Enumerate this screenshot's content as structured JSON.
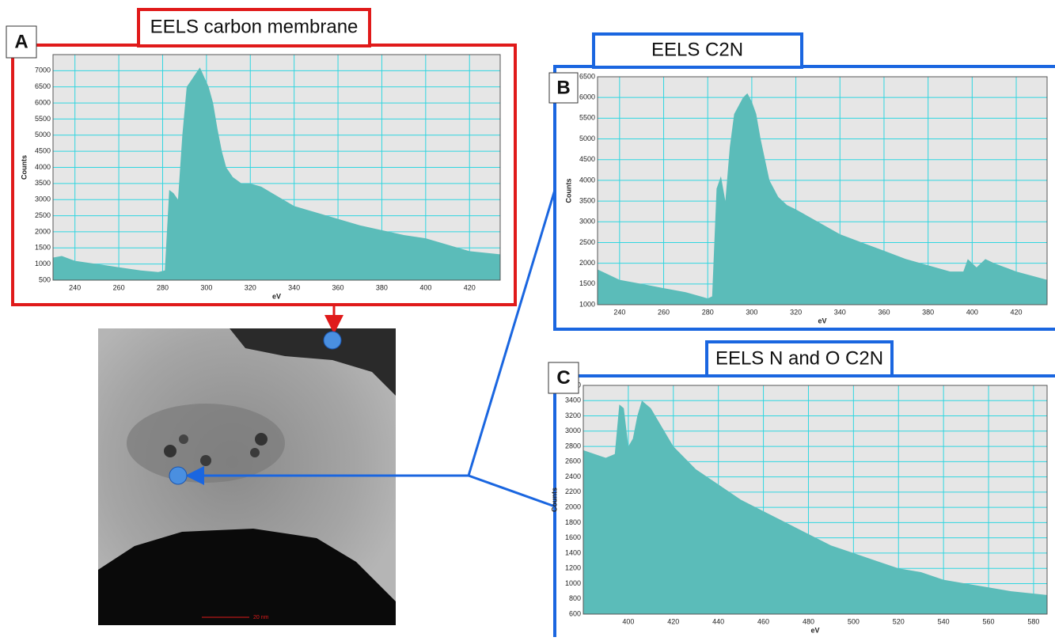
{
  "chart_data": [
    {
      "type": "area",
      "label": "A",
      "title": "EELS carbon membrane",
      "xlabel": "eV",
      "ylabel": "Counts",
      "color": "#5bbcb9",
      "grid": true,
      "xlim": [
        230,
        434
      ],
      "ylim": [
        500,
        7500
      ],
      "xticks": [
        240,
        260,
        280,
        300,
        320,
        340,
        360,
        380,
        400,
        420
      ],
      "yticks": [
        500,
        1000,
        1500,
        2000,
        2500,
        3000,
        3500,
        4000,
        4500,
        5000,
        5500,
        6000,
        6500,
        7000
      ],
      "x": [
        230,
        234,
        240,
        250,
        260,
        270,
        278,
        281,
        283,
        285,
        287,
        289,
        291,
        293,
        295,
        297,
        299,
        301,
        303,
        305,
        307,
        309,
        312,
        316,
        320,
        325,
        330,
        335,
        340,
        350,
        360,
        370,
        380,
        390,
        400,
        410,
        420,
        434
      ],
      "values": [
        1200,
        1250,
        1100,
        1000,
        900,
        800,
        750,
        800,
        3300,
        3200,
        3000,
        5000,
        6500,
        6700,
        6900,
        7100,
        6800,
        6500,
        6000,
        5200,
        4500,
        4000,
        3700,
        3500,
        3500,
        3400,
        3200,
        3000,
        2800,
        2600,
        2400,
        2200,
        2050,
        1900,
        1800,
        1600,
        1400,
        1300
      ]
    },
    {
      "type": "area",
      "label": "B",
      "title": "EELS C2N",
      "xlabel": "eV",
      "ylabel": "Counts",
      "color": "#5bbcb9",
      "grid": true,
      "xlim": [
        230,
        434
      ],
      "ylim": [
        1000,
        6500
      ],
      "xticks": [
        240,
        260,
        280,
        300,
        320,
        340,
        360,
        380,
        400,
        420
      ],
      "yticks": [
        1000,
        1500,
        2000,
        2500,
        3000,
        3500,
        4000,
        4500,
        5000,
        5500,
        6000,
        6500
      ],
      "x": [
        230,
        240,
        250,
        260,
        270,
        280,
        282,
        284,
        286,
        288,
        290,
        292,
        294,
        296,
        298,
        300,
        302,
        304,
        306,
        308,
        312,
        316,
        320,
        330,
        340,
        350,
        360,
        370,
        380,
        390,
        396,
        398,
        402,
        406,
        410,
        420,
        434
      ],
      "values": [
        1850,
        1600,
        1500,
        1400,
        1300,
        1150,
        1200,
        3800,
        4100,
        3500,
        4800,
        5600,
        5800,
        6000,
        6100,
        5900,
        5600,
        5000,
        4500,
        4000,
        3600,
        3400,
        3300,
        3000,
        2700,
        2500,
        2300,
        2100,
        1950,
        1800,
        1800,
        2100,
        1900,
        2100,
        2000,
        1800,
        1600
      ]
    },
    {
      "type": "area",
      "label": "C",
      "title": "EELS N and O C2N",
      "xlabel": "eV",
      "ylabel": "Counts",
      "color": "#5bbcb9",
      "grid": true,
      "xlim": [
        380,
        586
      ],
      "ylim": [
        600,
        3600
      ],
      "xticks": [
        400,
        420,
        440,
        460,
        480,
        500,
        520,
        540,
        560,
        580
      ],
      "yticks": [
        600,
        800,
        1000,
        1200,
        1400,
        1600,
        1800,
        2000,
        2200,
        2400,
        2600,
        2800,
        3000,
        3200,
        3400,
        3600
      ],
      "x": [
        380,
        385,
        390,
        394,
        396,
        398,
        400,
        402,
        404,
        406,
        408,
        410,
        414,
        420,
        430,
        440,
        450,
        460,
        470,
        480,
        490,
        500,
        510,
        520,
        530,
        540,
        550,
        560,
        570,
        586
      ],
      "values": [
        2750,
        2700,
        2650,
        2700,
        3350,
        3300,
        2800,
        2900,
        3200,
        3400,
        3350,
        3300,
        3100,
        2800,
        2500,
        2300,
        2100,
        1950,
        1800,
        1650,
        1500,
        1400,
        1300,
        1200,
        1150,
        1050,
        1000,
        950,
        900,
        850
      ]
    }
  ],
  "image": {
    "scale_bar": "20 nm"
  }
}
